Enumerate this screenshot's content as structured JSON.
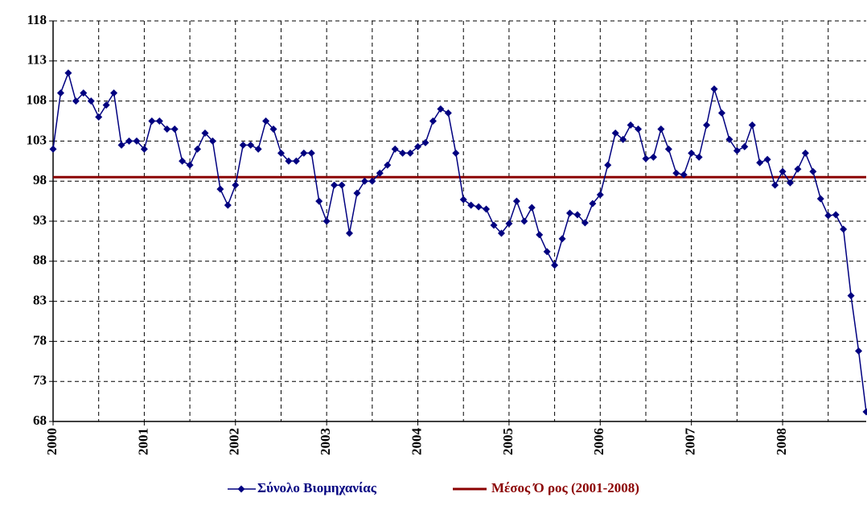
{
  "chart_data": {
    "type": "line",
    "categories": [
      "2000",
      null,
      null,
      null,
      null,
      null,
      null,
      null,
      null,
      null,
      null,
      null,
      "2001",
      null,
      null,
      null,
      null,
      null,
      null,
      null,
      null,
      null,
      null,
      null,
      "2002",
      null,
      null,
      null,
      null,
      null,
      null,
      null,
      null,
      null,
      null,
      null,
      "2003",
      null,
      null,
      null,
      null,
      null,
      null,
      null,
      null,
      null,
      null,
      null,
      "2004",
      null,
      null,
      null,
      null,
      null,
      null,
      null,
      null,
      null,
      null,
      null,
      "2005",
      null,
      null,
      null,
      null,
      null,
      null,
      null,
      null,
      null,
      null,
      null,
      "2006",
      null,
      null,
      null,
      null,
      null,
      null,
      null,
      null,
      null,
      null,
      null,
      "2007",
      null,
      null,
      null,
      null,
      null,
      null,
      null,
      null,
      null,
      null,
      null,
      "2008",
      null,
      null,
      null,
      null,
      null,
      null,
      null,
      null,
      null,
      null,
      null
    ],
    "series": [
      {
        "name": "Σύνολο Βιομηχανίας",
        "color": "#000080",
        "values": [
          102,
          109,
          111.5,
          108,
          109,
          108,
          106,
          107.5,
          109,
          102.5,
          103,
          103,
          102,
          105.5,
          105.5,
          104.5,
          104.5,
          100.5,
          100,
          102,
          104,
          103,
          97,
          95,
          97.5,
          102.5,
          102.5,
          102,
          105.5,
          104.5,
          101.5,
          100.5,
          100.5,
          101.5,
          101.5,
          95.5,
          93,
          97.5,
          97.5,
          91.5,
          96.5,
          98,
          98,
          99,
          100,
          102,
          101.5,
          101.5,
          102.3,
          102.8,
          105.5,
          107,
          106.5,
          101.5,
          95.7,
          95,
          94.8,
          94.5,
          92.5,
          91.5,
          92.7,
          95.5,
          93,
          94.7,
          91.3,
          89.2,
          87.5,
          90.8,
          94,
          93.8,
          92.8,
          95.2,
          96.3,
          100,
          104,
          103.2,
          105,
          104.5,
          100.8,
          101,
          104.5,
          102,
          99,
          98.8,
          101.5,
          101,
          105,
          109.5,
          106.5,
          103.2,
          101.8,
          102.3,
          105,
          100.3,
          100.7,
          97.5,
          99.2,
          97.8,
          99.5,
          101.5,
          99.2,
          95.8,
          93.7,
          93.8,
          92,
          83.7,
          76.8,
          69.2
        ]
      },
      {
        "name": "Μέσος Ό ρος (2001-2008)",
        "color": "#8b0000",
        "value": 98.5
      }
    ],
    "ylim": [
      68,
      118
    ],
    "yticks": [
      68,
      73,
      78,
      83,
      88,
      93,
      98,
      103,
      108,
      113,
      118
    ],
    "grid": true
  }
}
